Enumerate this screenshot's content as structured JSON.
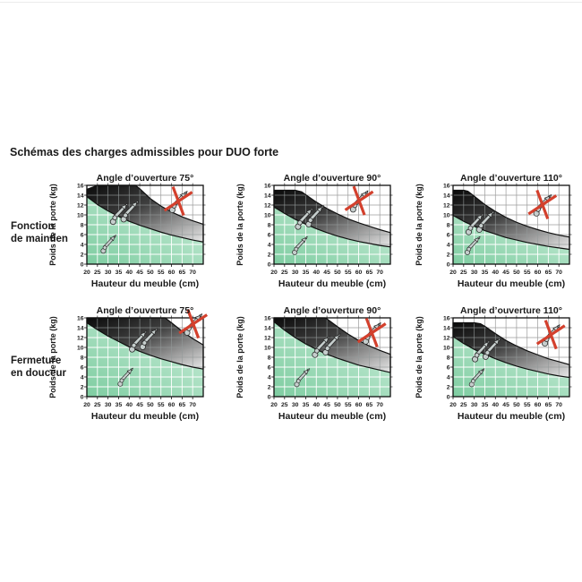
{
  "page": {
    "title": "Schémas des charges admissibles pour DUO forte"
  },
  "rows": [
    {
      "label_lines": [
        "Fonction",
        "de maintien"
      ]
    },
    {
      "label_lines": [
        "Fermeture",
        "en douceur"
      ]
    }
  ],
  "colors": {
    "text": "#1a1a1a",
    "plot_border": "#101010",
    "curve": "#101010",
    "grid_white_area": "#9b9b9b",
    "grid_green_area": "#ffffff",
    "grid_band_area": "#949a9a",
    "green_gradient": [
      "#7ecda1",
      "#cdeedb"
    ],
    "band_gradient": [
      "#0a0a0a",
      "#3f3f3f",
      "#e9e9e9"
    ],
    "prohibit_red": "#d3402d",
    "arm_fill": "#c6cecd",
    "arm_stroke": "#2c2c2c"
  },
  "chart_data": [
    {
      "type": "area",
      "title": "Angle d’ouverture 75°",
      "row_function": "Fonction de maintien",
      "xlabel": "Hauteur du meuble (cm)",
      "ylabel": "Poids de la porte (kg)",
      "x_ticks": [
        20,
        25,
        30,
        35,
        40,
        45,
        50,
        55,
        60,
        65,
        70
      ],
      "y_ticks": [
        0,
        2,
        4,
        6,
        8,
        10,
        12,
        14,
        16
      ],
      "x_range": [
        20,
        75
      ],
      "y_range": [
        0,
        16
      ],
      "grid": true,
      "series": [
        {
          "name": "limite_deux_bras",
          "points": [
            [
              20,
              15.2
            ],
            [
              25,
              16
            ],
            [
              30,
              16
            ],
            [
              35,
              16
            ],
            [
              40,
              16
            ],
            [
              43,
              16
            ],
            [
              45,
              15.3
            ],
            [
              50,
              13.3
            ],
            [
              55,
              11.8
            ],
            [
              60,
              10.6
            ],
            [
              65,
              9.6
            ],
            [
              70,
              8.8
            ],
            [
              75,
              8.1
            ]
          ]
        },
        {
          "name": "limite_un_bras",
          "points": [
            [
              20,
              13.7
            ],
            [
              25,
              12.1
            ],
            [
              30,
              10.8
            ],
            [
              35,
              9.7
            ],
            [
              40,
              8.7
            ],
            [
              45,
              7.9
            ],
            [
              50,
              7.2
            ],
            [
              55,
              6.5
            ],
            [
              60,
              5.9
            ],
            [
              65,
              5.4
            ],
            [
              70,
              4.9
            ],
            [
              75,
              4.5
            ]
          ]
        }
      ],
      "icons": {
        "band_arms": [
          [
            35,
            10.4
          ],
          [
            40,
            10.9
          ]
        ],
        "green_arm": [
          30,
          4.2
        ],
        "crossed_arm": [
          63,
          12.8
        ]
      }
    },
    {
      "type": "area",
      "title": "Angle d’ouverture 90°",
      "row_function": "Fonction de maintien",
      "xlabel": "Hauteur du meuble (cm)",
      "ylabel": "Poids de la porte (kg)",
      "x_ticks": [
        20,
        25,
        30,
        35,
        40,
        45,
        50,
        55,
        60,
        65,
        70
      ],
      "y_ticks": [
        0,
        2,
        4,
        6,
        8,
        10,
        12,
        14,
        16
      ],
      "x_range": [
        20,
        75
      ],
      "y_range": [
        0,
        16
      ],
      "grid": true,
      "series": [
        {
          "name": "limite_deux_bras",
          "points": [
            [
              20,
              15
            ],
            [
              25,
              15
            ],
            [
              30,
              15
            ],
            [
              33,
              14.7
            ],
            [
              35,
              14.1
            ],
            [
              40,
              12.6
            ],
            [
              45,
              11.3
            ],
            [
              50,
              10.2
            ],
            [
              55,
              9.2
            ],
            [
              60,
              8.4
            ],
            [
              65,
              7.7
            ],
            [
              70,
              7.0
            ],
            [
              75,
              6.4
            ]
          ]
        },
        {
          "name": "limite_un_bras",
          "points": [
            [
              20,
              11.6
            ],
            [
              25,
              10.3
            ],
            [
              30,
              9.1
            ],
            [
              35,
              8.1
            ],
            [
              40,
              7.2
            ],
            [
              45,
              6.4
            ],
            [
              50,
              5.7
            ],
            [
              55,
              5.1
            ],
            [
              60,
              4.6
            ],
            [
              65,
              4.2
            ],
            [
              70,
              3.8
            ],
            [
              75,
              3.5
            ]
          ]
        }
      ],
      "icons": {
        "band_arms": [
          [
            34,
            9.4
          ],
          [
            39,
            9.9
          ]
        ],
        "green_arm": [
          32,
          3.9
        ],
        "crossed_arm": [
          60,
          12.9
        ]
      }
    },
    {
      "type": "area",
      "title": "Angle d’ouverture 110°",
      "row_function": "Fonction de maintien",
      "xlabel": "Hauteur du meuble (cm)",
      "ylabel": "Poids de la porte (kg)",
      "x_ticks": [
        20,
        25,
        30,
        35,
        40,
        45,
        50,
        55,
        60,
        65,
        70
      ],
      "y_ticks": [
        0,
        2,
        4,
        6,
        8,
        10,
        12,
        14,
        16
      ],
      "x_range": [
        20,
        75
      ],
      "y_range": [
        0,
        16
      ],
      "grid": true,
      "series": [
        {
          "name": "limite_deux_bras",
          "points": [
            [
              20,
              15
            ],
            [
              25,
              15
            ],
            [
              27,
              14.8
            ],
            [
              30,
              13.8
            ],
            [
              35,
              12.1
            ],
            [
              40,
              10.7
            ],
            [
              45,
              9.5
            ],
            [
              50,
              8.5
            ],
            [
              55,
              7.7
            ],
            [
              60,
              7.0
            ],
            [
              65,
              6.4
            ],
            [
              70,
              5.9
            ],
            [
              75,
              5.5
            ]
          ]
        },
        {
          "name": "limite_un_bras",
          "points": [
            [
              20,
              9.9
            ],
            [
              25,
              8.7
            ],
            [
              30,
              7.7
            ],
            [
              35,
              6.8
            ],
            [
              40,
              6.1
            ],
            [
              45,
              5.4
            ],
            [
              50,
              4.9
            ],
            [
              55,
              4.4
            ],
            [
              60,
              4.0
            ],
            [
              65,
              3.6
            ],
            [
              70,
              3.3
            ],
            [
              75,
              3.0
            ]
          ]
        }
      ],
      "icons": {
        "band_arms": [
          [
            30,
            8.3
          ],
          [
            35,
            8.8
          ]
        ],
        "green_arm": [
          29,
          3.9
        ],
        "crossed_arm": [
          62,
          12.1
        ]
      }
    },
    {
      "type": "area",
      "title": "Angle d’ouverture 75°",
      "row_function": "Fermeture en douceur",
      "xlabel": "Hauteur du meuble (cm)",
      "ylabel": "Poids de la porte (kg)",
      "x_ticks": [
        20,
        25,
        30,
        35,
        40,
        45,
        50,
        55,
        60,
        65,
        70
      ],
      "y_ticks": [
        0,
        2,
        4,
        6,
        8,
        10,
        12,
        14,
        16
      ],
      "x_range": [
        20,
        75
      ],
      "y_range": [
        0,
        16
      ],
      "grid": true,
      "series": [
        {
          "name": "limite_deux_bras",
          "points": [
            [
              20,
              16
            ],
            [
              30,
              16
            ],
            [
              40,
              16
            ],
            [
              50,
              16
            ],
            [
              57,
              16
            ],
            [
              60,
              15.0
            ],
            [
              65,
              13.3
            ],
            [
              70,
              11.8
            ],
            [
              75,
              10.5
            ]
          ]
        },
        {
          "name": "limite_un_bras",
          "points": [
            [
              20,
              15.0
            ],
            [
              25,
              13.6
            ],
            [
              30,
              12.3
            ],
            [
              35,
              11.2
            ],
            [
              40,
              10.1
            ],
            [
              45,
              9.2
            ],
            [
              50,
              8.4
            ],
            [
              55,
              7.7
            ],
            [
              60,
              7.1
            ],
            [
              65,
              6.5
            ],
            [
              70,
              6.0
            ],
            [
              75,
              5.6
            ]
          ]
        }
      ],
      "icons": {
        "band_arms": [
          [
            44,
            11.4
          ],
          [
            49,
            11.9
          ]
        ],
        "green_arm": [
          38,
          4.1
        ],
        "crossed_arm": [
          70,
          14.8
        ]
      }
    },
    {
      "type": "area",
      "title": "Angle d’ouverture 90°",
      "row_function": "Fermeture en douceur",
      "xlabel": "Hauteur du meuble (cm)",
      "ylabel": "Poids de la porte (kg)",
      "x_ticks": [
        20,
        25,
        30,
        35,
        40,
        45,
        50,
        55,
        60,
        65,
        70
      ],
      "y_ticks": [
        0,
        2,
        4,
        6,
        8,
        10,
        12,
        14,
        16
      ],
      "x_range": [
        20,
        75
      ],
      "y_range": [
        0,
        16
      ],
      "grid": true,
      "series": [
        {
          "name": "limite_deux_bras",
          "points": [
            [
              20,
              16
            ],
            [
              30,
              16
            ],
            [
              40,
              16
            ],
            [
              44,
              16
            ],
            [
              45,
              15.8
            ],
            [
              50,
              14.2
            ],
            [
              55,
              12.7
            ],
            [
              60,
              11.4
            ],
            [
              65,
              10.3
            ],
            [
              70,
              9.4
            ],
            [
              75,
              8.6
            ]
          ]
        },
        {
          "name": "limite_un_bras",
          "points": [
            [
              20,
              15.2
            ],
            [
              25,
              13.5
            ],
            [
              30,
              12.0
            ],
            [
              35,
              10.7
            ],
            [
              40,
              9.6
            ],
            [
              45,
              8.6
            ],
            [
              50,
              7.8
            ],
            [
              55,
              7.1
            ],
            [
              60,
              6.4
            ],
            [
              65,
              5.9
            ],
            [
              70,
              5.4
            ],
            [
              75,
              4.9
            ]
          ]
        }
      ],
      "icons": {
        "band_arms": [
          [
            42,
            10.3
          ],
          [
            47,
            10.8
          ]
        ],
        "green_arm": [
          33,
          4.0
        ],
        "crossed_arm": [
          66,
          13.0
        ]
      }
    },
    {
      "type": "area",
      "title": "Angle d’ouverture 110°",
      "row_function": "Fermeture en douceur",
      "xlabel": "Hauteur du meuble (cm)",
      "ylabel": "Poids de la porte (kg)",
      "x_ticks": [
        20,
        25,
        30,
        35,
        40,
        45,
        50,
        55,
        60,
        65,
        70
      ],
      "y_ticks": [
        0,
        2,
        4,
        6,
        8,
        10,
        12,
        14,
        16
      ],
      "x_range": [
        20,
        75
      ],
      "y_range": [
        0,
        16
      ],
      "grid": true,
      "series": [
        {
          "name": "limite_deux_bras",
          "points": [
            [
              20,
              15
            ],
            [
              25,
              15
            ],
            [
              30,
              15
            ],
            [
              33,
              14.8
            ],
            [
              35,
              14.3
            ],
            [
              40,
              12.8
            ],
            [
              45,
              11.4
            ],
            [
              50,
              10.3
            ],
            [
              55,
              9.3
            ],
            [
              60,
              8.5
            ],
            [
              65,
              7.7
            ],
            [
              70,
              7.1
            ],
            [
              75,
              6.5
            ]
          ]
        },
        {
          "name": "limite_un_bras",
          "points": [
            [
              20,
              12.2
            ],
            [
              25,
              10.8
            ],
            [
              30,
              9.6
            ],
            [
              35,
              8.6
            ],
            [
              40,
              7.7
            ],
            [
              45,
              6.9
            ],
            [
              50,
              6.2
            ],
            [
              55,
              5.6
            ],
            [
              60,
              5.1
            ],
            [
              65,
              4.6
            ],
            [
              70,
              4.2
            ],
            [
              75,
              3.9
            ]
          ]
        }
      ],
      "icons": {
        "band_arms": [
          [
            33,
            9.4
          ],
          [
            38,
            9.9
          ]
        ],
        "green_arm": [
          31,
          4.0
        ],
        "crossed_arm": [
          66,
          12.6
        ]
      }
    }
  ]
}
